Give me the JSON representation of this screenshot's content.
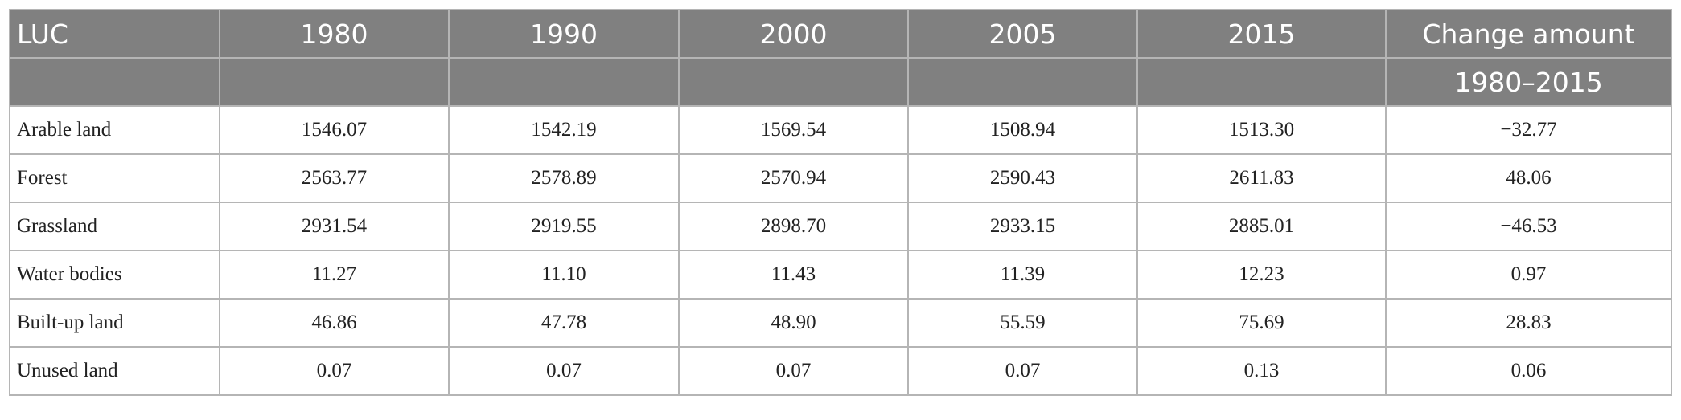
{
  "header": {
    "columns": [
      "LUC",
      "1980",
      "1990",
      "2000",
      "2005",
      "2015",
      "Change amount"
    ],
    "sub": "1980–2015"
  },
  "rows": [
    [
      "Arable land",
      "1546.07",
      "1542.19",
      "1569.54",
      "1508.94",
      "1513.30",
      "−32.77"
    ],
    [
      "Forest",
      "2563.77",
      "2578.89",
      "2570.94",
      "2590.43",
      "2611.83",
      "48.06"
    ],
    [
      "Grassland",
      "2931.54",
      "2919.55",
      "2898.70",
      "2933.15",
      "2885.01",
      "−46.53"
    ],
    [
      "Water bodies",
      "11.27",
      "11.10",
      "11.43",
      "11.39",
      "12.23",
      "0.97"
    ],
    [
      "Built-up land",
      "46.86",
      "47.78",
      "48.90",
      "55.59",
      "75.69",
      "28.83"
    ],
    [
      "Unused land",
      "0.07",
      "0.07",
      "0.07",
      "0.07",
      "0.13",
      "0.06"
    ]
  ]
}
